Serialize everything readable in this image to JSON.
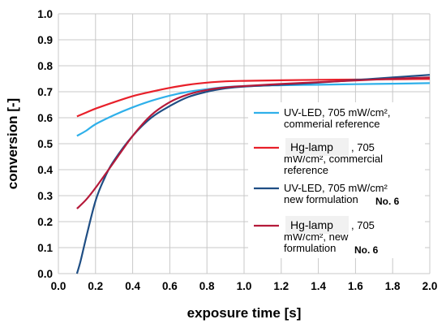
{
  "chart_data": {
    "type": "line",
    "xlabel": "exposure time [s]",
    "ylabel": "conversion [-]",
    "xlim": [
      0.0,
      2.0
    ],
    "ylim": [
      0.0,
      1.0
    ],
    "x_ticks": [
      "0.0",
      "0.2",
      "0.4",
      "0.6",
      "0.8",
      "1.0",
      "1.2",
      "1.4",
      "1.6",
      "1.8",
      "2.0"
    ],
    "y_ticks": [
      "0.0",
      "0.1",
      "0.2",
      "0.3",
      "0.4",
      "0.5",
      "0.6",
      "0.7",
      "0.8",
      "0.9",
      "1.0"
    ],
    "grid": true,
    "legend_position": "right",
    "series": [
      {
        "name_lines": [
          "UV-LED, 705 mW/cm², ",
          "commerial reference"
        ],
        "name_tag": "",
        "name_suffix": "",
        "color": "#2fb0ea",
        "x": [
          0.1,
          0.15,
          0.2,
          0.3,
          0.4,
          0.5,
          0.6,
          0.7,
          0.8,
          0.9,
          1.0,
          1.2,
          1.4,
          1.6,
          1.8,
          2.0
        ],
        "y": [
          0.53,
          0.55,
          0.575,
          0.61,
          0.64,
          0.665,
          0.685,
          0.7,
          0.71,
          0.718,
          0.722,
          0.725,
          0.727,
          0.729,
          0.731,
          0.733
        ]
      },
      {
        "name_lines": [
          ", 705",
          "mW/cm², commercial",
          "reference"
        ],
        "name_tag": "Hg-lamp",
        "name_suffix": "",
        "color": "#e8202a",
        "x": [
          0.1,
          0.15,
          0.2,
          0.3,
          0.4,
          0.5,
          0.6,
          0.7,
          0.8,
          0.9,
          1.0,
          1.2,
          1.4,
          1.6,
          1.8,
          2.0
        ],
        "y": [
          0.605,
          0.62,
          0.635,
          0.66,
          0.683,
          0.7,
          0.715,
          0.727,
          0.735,
          0.74,
          0.742,
          0.744,
          0.746,
          0.747,
          0.748,
          0.749
        ]
      },
      {
        "name_lines": [
          "UV-LED, 705 mW/cm²",
          "new formulation "
        ],
        "name_tag": "",
        "name_suffix": "No. 6",
        "color": "#1f4e84",
        "x": [
          0.1,
          0.12,
          0.15,
          0.2,
          0.25,
          0.3,
          0.4,
          0.5,
          0.6,
          0.7,
          0.8,
          0.9,
          1.0,
          1.2,
          1.4,
          1.6,
          1.8,
          2.0
        ],
        "y": [
          0.0,
          0.05,
          0.14,
          0.28,
          0.37,
          0.435,
          0.53,
          0.6,
          0.645,
          0.68,
          0.7,
          0.713,
          0.72,
          0.727,
          0.735,
          0.745,
          0.755,
          0.765
        ]
      },
      {
        "name_lines": [
          ", 705",
          "mW/cm², new",
          "formulation "
        ],
        "name_tag": "Hg-lamp",
        "name_suffix": "No. 6",
        "color": "#b51a3a",
        "x": [
          0.1,
          0.15,
          0.2,
          0.25,
          0.3,
          0.4,
          0.5,
          0.6,
          0.7,
          0.8,
          0.9,
          1.0,
          1.2,
          1.4,
          1.6,
          1.8,
          2.0
        ],
        "y": [
          0.25,
          0.285,
          0.33,
          0.38,
          0.43,
          0.53,
          0.61,
          0.66,
          0.69,
          0.707,
          0.717,
          0.722,
          0.73,
          0.737,
          0.743,
          0.75,
          0.755
        ]
      }
    ]
  }
}
